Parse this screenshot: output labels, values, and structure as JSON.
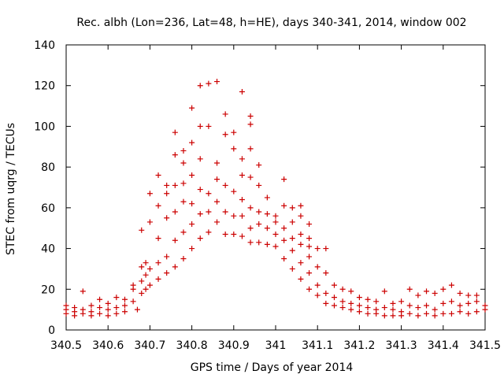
{
  "chart_data": {
    "type": "scatter",
    "title": "Rec. albh (Lon=236, Lat=48, h=HE), days 340-341, 2014, window 002",
    "xlabel": "GPS time / Days of year 2014",
    "ylabel": "STEC from uqrg / TECUs",
    "xlim": [
      340.5,
      341.5
    ],
    "ylim": [
      0,
      140
    ],
    "x_ticks": [
      340.5,
      340.6,
      340.7,
      340.8,
      340.9,
      341.0,
      341.1,
      341.2,
      341.3,
      341.4,
      341.5
    ],
    "x_tick_labels": [
      "340.5",
      "340.6",
      "340.7",
      "340.8",
      "340.9",
      "341",
      "341.1",
      "341.2",
      "341.3",
      "341.4",
      "341.5"
    ],
    "y_ticks": [
      0,
      20,
      40,
      60,
      80,
      100,
      120,
      140
    ],
    "y_tick_labels": [
      "0",
      "20",
      "40",
      "60",
      "80",
      "100",
      "120",
      "140"
    ],
    "marker": "+",
    "color": "#cc0000",
    "grid": false,
    "series": [
      {
        "name": "STEC",
        "points": [
          [
            340.5,
            8
          ],
          [
            340.5,
            10
          ],
          [
            340.5,
            12
          ],
          [
            340.52,
            7
          ],
          [
            340.52,
            9
          ],
          [
            340.52,
            11
          ],
          [
            340.54,
            8
          ],
          [
            340.54,
            10
          ],
          [
            340.54,
            19
          ],
          [
            340.56,
            7
          ],
          [
            340.56,
            9
          ],
          [
            340.56,
            12
          ],
          [
            340.58,
            8
          ],
          [
            340.58,
            11
          ],
          [
            340.58,
            15
          ],
          [
            340.6,
            7
          ],
          [
            340.6,
            10
          ],
          [
            340.6,
            13
          ],
          [
            340.62,
            8
          ],
          [
            340.62,
            11
          ],
          [
            340.62,
            16
          ],
          [
            340.64,
            9
          ],
          [
            340.64,
            12
          ],
          [
            340.64,
            15
          ],
          [
            340.66,
            14
          ],
          [
            340.66,
            20
          ],
          [
            340.66,
            22
          ],
          [
            340.67,
            10
          ],
          [
            340.68,
            18
          ],
          [
            340.68,
            24
          ],
          [
            340.68,
            31
          ],
          [
            340.68,
            49
          ],
          [
            340.69,
            20
          ],
          [
            340.69,
            27
          ],
          [
            340.69,
            33
          ],
          [
            340.7,
            22
          ],
          [
            340.7,
            30
          ],
          [
            340.7,
            53
          ],
          [
            340.7,
            67
          ],
          [
            340.72,
            25
          ],
          [
            340.72,
            33
          ],
          [
            340.72,
            45
          ],
          [
            340.72,
            61
          ],
          [
            340.72,
            76
          ],
          [
            340.74,
            28
          ],
          [
            340.74,
            36
          ],
          [
            340.74,
            55
          ],
          [
            340.74,
            67
          ],
          [
            340.74,
            71
          ],
          [
            340.76,
            31
          ],
          [
            340.76,
            44
          ],
          [
            340.76,
            58
          ],
          [
            340.76,
            71
          ],
          [
            340.76,
            86
          ],
          [
            340.76,
            97
          ],
          [
            340.78,
            35
          ],
          [
            340.78,
            48
          ],
          [
            340.78,
            63
          ],
          [
            340.78,
            72
          ],
          [
            340.78,
            82
          ],
          [
            340.78,
            88
          ],
          [
            340.8,
            40
          ],
          [
            340.8,
            52
          ],
          [
            340.8,
            62
          ],
          [
            340.8,
            76
          ],
          [
            340.8,
            92
          ],
          [
            340.8,
            109
          ],
          [
            340.82,
            45
          ],
          [
            340.82,
            57
          ],
          [
            340.82,
            69
          ],
          [
            340.82,
            84
          ],
          [
            340.82,
            100
          ],
          [
            340.82,
            120
          ],
          [
            340.84,
            48
          ],
          [
            340.84,
            58
          ],
          [
            340.84,
            67
          ],
          [
            340.84,
            100
          ],
          [
            340.84,
            121
          ],
          [
            340.86,
            53
          ],
          [
            340.86,
            63
          ],
          [
            340.86,
            74
          ],
          [
            340.86,
            82
          ],
          [
            340.86,
            122
          ],
          [
            340.88,
            47
          ],
          [
            340.88,
            58
          ],
          [
            340.88,
            71
          ],
          [
            340.88,
            96
          ],
          [
            340.88,
            106
          ],
          [
            340.9,
            47
          ],
          [
            340.9,
            56
          ],
          [
            340.9,
            68
          ],
          [
            340.9,
            89
          ],
          [
            340.9,
            97
          ],
          [
            340.92,
            46
          ],
          [
            340.92,
            56
          ],
          [
            340.92,
            64
          ],
          [
            340.92,
            76
          ],
          [
            340.92,
            84
          ],
          [
            340.92,
            117
          ],
          [
            340.94,
            43
          ],
          [
            340.94,
            50
          ],
          [
            340.94,
            60
          ],
          [
            340.94,
            75
          ],
          [
            340.94,
            89
          ],
          [
            340.94,
            101
          ],
          [
            340.94,
            105
          ],
          [
            340.96,
            43
          ],
          [
            340.96,
            52
          ],
          [
            340.96,
            58
          ],
          [
            340.96,
            71
          ],
          [
            340.96,
            81
          ],
          [
            340.98,
            42
          ],
          [
            340.98,
            50
          ],
          [
            340.98,
            57
          ],
          [
            340.98,
            65
          ],
          [
            341.0,
            41
          ],
          [
            341.0,
            47
          ],
          [
            341.0,
            53
          ],
          [
            341.0,
            56
          ],
          [
            341.02,
            35
          ],
          [
            341.02,
            44
          ],
          [
            341.02,
            50
          ],
          [
            341.02,
            61
          ],
          [
            341.02,
            74
          ],
          [
            341.04,
            30
          ],
          [
            341.04,
            39
          ],
          [
            341.04,
            45
          ],
          [
            341.04,
            53
          ],
          [
            341.04,
            60
          ],
          [
            341.06,
            25
          ],
          [
            341.06,
            33
          ],
          [
            341.06,
            42
          ],
          [
            341.06,
            47
          ],
          [
            341.06,
            56
          ],
          [
            341.06,
            61
          ],
          [
            341.08,
            20
          ],
          [
            341.08,
            28
          ],
          [
            341.08,
            36
          ],
          [
            341.08,
            41
          ],
          [
            341.08,
            45
          ],
          [
            341.08,
            52
          ],
          [
            341.1,
            17
          ],
          [
            341.1,
            22
          ],
          [
            341.1,
            31
          ],
          [
            341.1,
            40
          ],
          [
            341.12,
            13
          ],
          [
            341.12,
            18
          ],
          [
            341.12,
            28
          ],
          [
            341.12,
            40
          ],
          [
            341.14,
            12
          ],
          [
            341.14,
            16
          ],
          [
            341.14,
            22
          ],
          [
            341.16,
            11
          ],
          [
            341.16,
            14
          ],
          [
            341.16,
            20
          ],
          [
            341.18,
            10
          ],
          [
            341.18,
            13
          ],
          [
            341.18,
            19
          ],
          [
            341.2,
            9
          ],
          [
            341.2,
            12
          ],
          [
            341.2,
            16
          ],
          [
            341.22,
            8
          ],
          [
            341.22,
            11
          ],
          [
            341.22,
            15
          ],
          [
            341.24,
            8
          ],
          [
            341.24,
            10
          ],
          [
            341.24,
            14
          ],
          [
            341.26,
            7
          ],
          [
            341.26,
            11
          ],
          [
            341.26,
            19
          ],
          [
            341.28,
            7
          ],
          [
            341.28,
            10
          ],
          [
            341.28,
            13
          ],
          [
            341.3,
            7
          ],
          [
            341.3,
            9
          ],
          [
            341.3,
            14
          ],
          [
            341.32,
            8
          ],
          [
            341.32,
            12
          ],
          [
            341.32,
            20
          ],
          [
            341.34,
            7
          ],
          [
            341.34,
            11
          ],
          [
            341.34,
            17
          ],
          [
            341.36,
            8
          ],
          [
            341.36,
            12
          ],
          [
            341.36,
            19
          ],
          [
            341.38,
            7
          ],
          [
            341.38,
            10
          ],
          [
            341.38,
            18
          ],
          [
            341.4,
            8
          ],
          [
            341.4,
            13
          ],
          [
            341.4,
            20
          ],
          [
            341.42,
            8
          ],
          [
            341.42,
            14
          ],
          [
            341.42,
            22
          ],
          [
            341.44,
            9
          ],
          [
            341.44,
            12
          ],
          [
            341.44,
            18
          ],
          [
            341.46,
            8
          ],
          [
            341.46,
            13
          ],
          [
            341.46,
            17
          ],
          [
            341.48,
            9
          ],
          [
            341.48,
            14
          ],
          [
            341.48,
            17
          ],
          [
            341.5,
            10
          ],
          [
            341.5,
            12
          ]
        ]
      }
    ]
  }
}
